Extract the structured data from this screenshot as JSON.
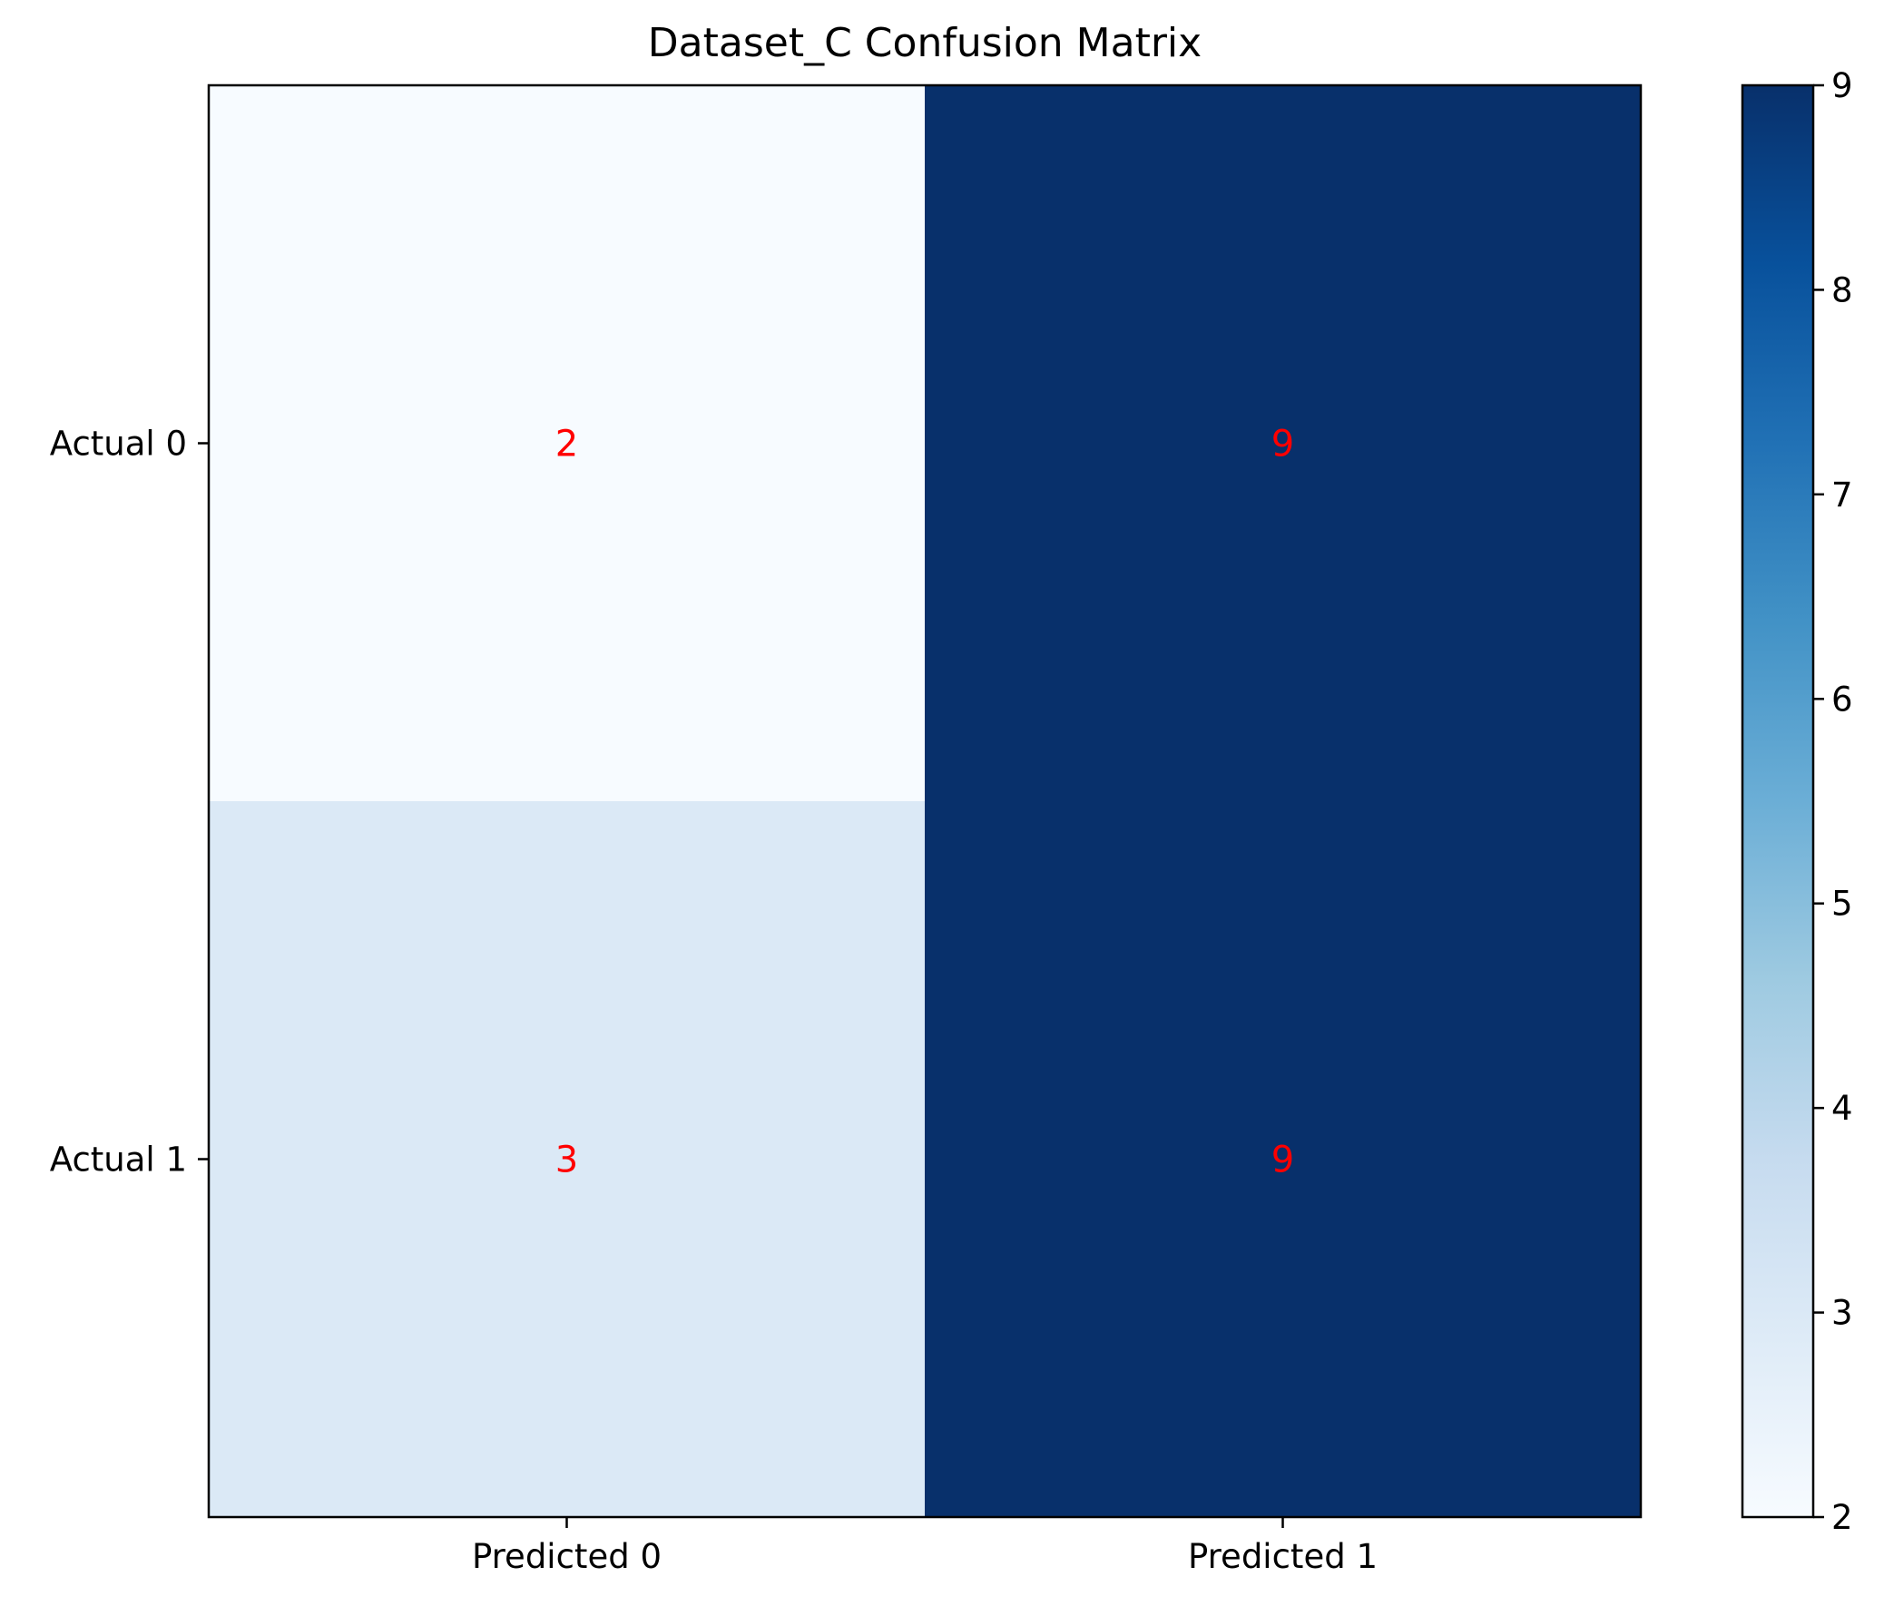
{
  "chart_data": {
    "type": "heatmap",
    "title": "Dataset_C Confusion Matrix",
    "x_categories": [
      "Predicted 0",
      "Predicted 1"
    ],
    "y_categories": [
      "Actual 0",
      "Actual 1"
    ],
    "values": [
      [
        2,
        9
      ],
      [
        3,
        9
      ]
    ],
    "value_label_color": "#ff0000",
    "colormap": "Blues",
    "colorbar": {
      "min": 2,
      "max": 9,
      "ticks": [
        "2",
        "3",
        "4",
        "5",
        "6",
        "7",
        "8",
        "9"
      ]
    },
    "grid": false
  }
}
